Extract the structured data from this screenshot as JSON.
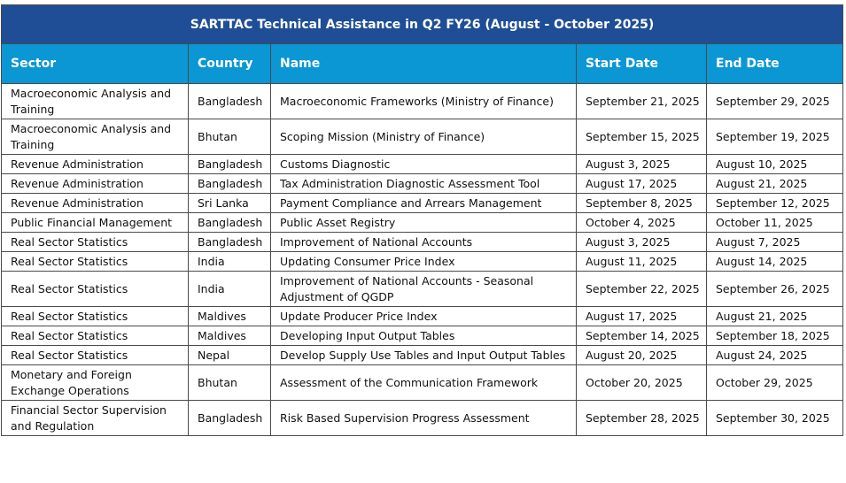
{
  "title": "SARTTAC Technical Assistance in Q2 FY26 (August - October 2025)",
  "table": {
    "columns": [
      "Sector",
      "Country",
      "Name",
      "Start Date",
      "End Date"
    ],
    "rows": [
      [
        "Macroeconomic Analysis and Training",
        "Bangladesh",
        "Macroeconomic Frameworks (Ministry of Finance)",
        "September 21, 2025",
        "September 29, 2025"
      ],
      [
        "Macroeconomic Analysis and Training",
        "Bhutan",
        "Scoping Mission (Ministry of Finance)",
        "September 15, 2025",
        "September 19, 2025"
      ],
      [
        "Revenue Administration",
        "Bangladesh",
        "Customs Diagnostic",
        "August 3, 2025",
        "August 10, 2025"
      ],
      [
        "Revenue Administration",
        "Bangladesh",
        "Tax Administration Diagnostic Assessment Tool",
        "August 17, 2025",
        "August 21, 2025"
      ],
      [
        "Revenue Administration",
        "Sri Lanka",
        "Payment Compliance and Arrears Management",
        "September 8, 2025",
        "September 12, 2025"
      ],
      [
        "Public Financial Management",
        "Bangladesh",
        "Public Asset Registry",
        "October 4, 2025",
        "October 11, 2025"
      ],
      [
        "Real Sector Statistics",
        "Bangladesh",
        "Improvement of National Accounts",
        "August 3, 2025",
        "August 7, 2025"
      ],
      [
        "Real Sector Statistics",
        "India",
        "Updating Consumer Price Index",
        "August 11, 2025",
        "August 14, 2025"
      ],
      [
        "Real Sector Statistics",
        "India",
        "Improvement of National Accounts - Seasonal Adjustment of QGDP",
        "September 22, 2025",
        "September 26, 2025"
      ],
      [
        "Real Sector Statistics",
        "Maldives",
        "Update Producer Price Index",
        "August 17, 2025",
        "August 21, 2025"
      ],
      [
        "Real Sector Statistics",
        "Maldives",
        "Developing Input Output Tables",
        "September 14, 2025",
        "September 18, 2025"
      ],
      [
        "Real Sector Statistics",
        "Nepal",
        "Develop Supply Use Tables and Input Output Tables",
        "August 20, 2025",
        "August 24, 2025"
      ],
      [
        "Monetary and Foreign Exchange Operations",
        "Bhutan",
        "Assessment of the Communication Framework",
        "October 20, 2025",
        "October 29, 2025"
      ],
      [
        "Financial Sector Supervision and Regulation",
        "Bangladesh",
        "Risk Based Supervision Progress Assessment",
        "September 28, 2025",
        "September 30, 2025"
      ]
    ]
  }
}
